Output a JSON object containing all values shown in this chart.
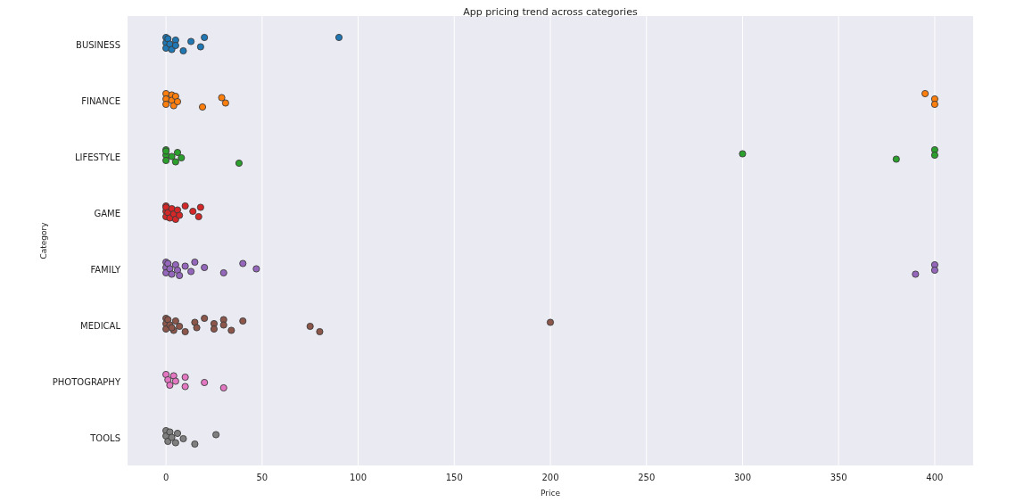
{
  "chart_data": {
    "type": "scatter",
    "orientation": "horizontal",
    "title": "App pricing trend across categories",
    "xlabel": "Price",
    "ylabel": "Category",
    "categories": [
      "BUSINESS",
      "FINANCE",
      "LIFESTYLE",
      "GAME",
      "FAMILY",
      "MEDICAL",
      "PHOTOGRAPHY",
      "TOOLS"
    ],
    "xlim": [
      -20,
      420
    ],
    "xticks": [
      0,
      50,
      100,
      150,
      200,
      250,
      300,
      350,
      400
    ],
    "grid": "x",
    "marker": "circle",
    "series": [
      {
        "color": "#1f77b4",
        "x": [
          "BUSINESS",
          "BUSINESS",
          "BUSINESS",
          "BUSINESS",
          "BUSINESS",
          "BUSINESS",
          "BUSINESS",
          "BUSINESS",
          "BUSINESS",
          "BUSINESS",
          "BUSINESS",
          "BUSINESS"
        ],
        "values": [
          0,
          0,
          0,
          1,
          2,
          3,
          5,
          5,
          9,
          13,
          18,
          20
        ]
      },
      {
        "color": "#ff7f0e",
        "x": [
          "FINANCE",
          "FINANCE",
          "FINANCE",
          "FINANCE",
          "FINANCE",
          "FINANCE",
          "FINANCE",
          "FINANCE",
          "FINANCE",
          "FINANCE",
          "FINANCE",
          "FINANCE",
          "FINANCE",
          "FINANCE"
        ],
        "values": [
          0,
          0,
          0,
          3,
          3,
          4,
          5,
          6,
          19,
          29,
          31,
          395,
          400,
          400
        ]
      },
      {
        "color": "#2ca02c",
        "x": [
          "LIFESTYLE",
          "LIFESTYLE",
          "LIFESTYLE",
          "LIFESTYLE",
          "LIFESTYLE",
          "LIFESTYLE",
          "LIFESTYLE",
          "LIFESTYLE",
          "LIFESTYLE",
          "LIFESTYLE",
          "LIFESTYLE",
          "LIFESTYLE",
          "LIFESTYLE"
        ],
        "values": [
          0,
          0,
          0,
          0,
          3,
          5,
          6,
          8,
          38,
          300,
          380,
          400,
          400
        ]
      },
      {
        "color": "#d62728",
        "x": [
          "GAME",
          "GAME",
          "GAME",
          "GAME",
          "GAME",
          "GAME",
          "GAME",
          "GAME",
          "GAME",
          "GAME",
          "GAME",
          "GAME",
          "GAME",
          "GAME",
          "GAME"
        ],
        "values": [
          0,
          0,
          0,
          0,
          1,
          2,
          3,
          4,
          5,
          6,
          7,
          10,
          14,
          17,
          18
        ]
      },
      {
        "color": "#9467bd",
        "x": [
          "FAMILY",
          "FAMILY",
          "FAMILY",
          "FAMILY",
          "FAMILY",
          "FAMILY",
          "FAMILY",
          "FAMILY",
          "FAMILY",
          "FAMILY",
          "FAMILY",
          "FAMILY",
          "FAMILY",
          "FAMILY",
          "FAMILY",
          "FAMILY",
          "FAMILY",
          "FAMILY",
          "FAMILY"
        ],
        "values": [
          0,
          0,
          0,
          1,
          2,
          3,
          5,
          6,
          7,
          10,
          13,
          15,
          20,
          30,
          40,
          47,
          390,
          400,
          400
        ]
      },
      {
        "color": "#8c564b",
        "x": [
          "MEDICAL",
          "MEDICAL",
          "MEDICAL",
          "MEDICAL",
          "MEDICAL",
          "MEDICAL",
          "MEDICAL",
          "MEDICAL",
          "MEDICAL",
          "MEDICAL",
          "MEDICAL",
          "MEDICAL",
          "MEDICAL",
          "MEDICAL",
          "MEDICAL",
          "MEDICAL",
          "MEDICAL",
          "MEDICAL",
          "MEDICAL",
          "MEDICAL",
          "MEDICAL",
          "MEDICAL"
        ],
        "values": [
          0,
          0,
          0,
          1,
          2,
          4,
          5,
          7,
          10,
          15,
          16,
          20,
          25,
          25,
          30,
          30,
          34,
          40,
          75,
          80,
          200,
          3
        ]
      },
      {
        "color": "#e377c2",
        "x": [
          "PHOTOGRAPHY",
          "PHOTOGRAPHY",
          "PHOTOGRAPHY",
          "PHOTOGRAPHY",
          "PHOTOGRAPHY",
          "PHOTOGRAPHY",
          "PHOTOGRAPHY",
          "PHOTOGRAPHY",
          "PHOTOGRAPHY"
        ],
        "values": [
          0,
          1,
          2,
          4,
          5,
          10,
          10,
          20,
          30
        ]
      },
      {
        "color": "#7f7f7f",
        "x": [
          "TOOLS",
          "TOOLS",
          "TOOLS",
          "TOOLS",
          "TOOLS",
          "TOOLS",
          "TOOLS",
          "TOOLS",
          "TOOLS",
          "TOOLS"
        ],
        "values": [
          0,
          0,
          1,
          2,
          3,
          5,
          6,
          9,
          15,
          26
        ]
      },
      {
        "color": "#1f77b4",
        "x": [
          "BUSINESS"
        ],
        "values": [
          90
        ]
      }
    ]
  }
}
